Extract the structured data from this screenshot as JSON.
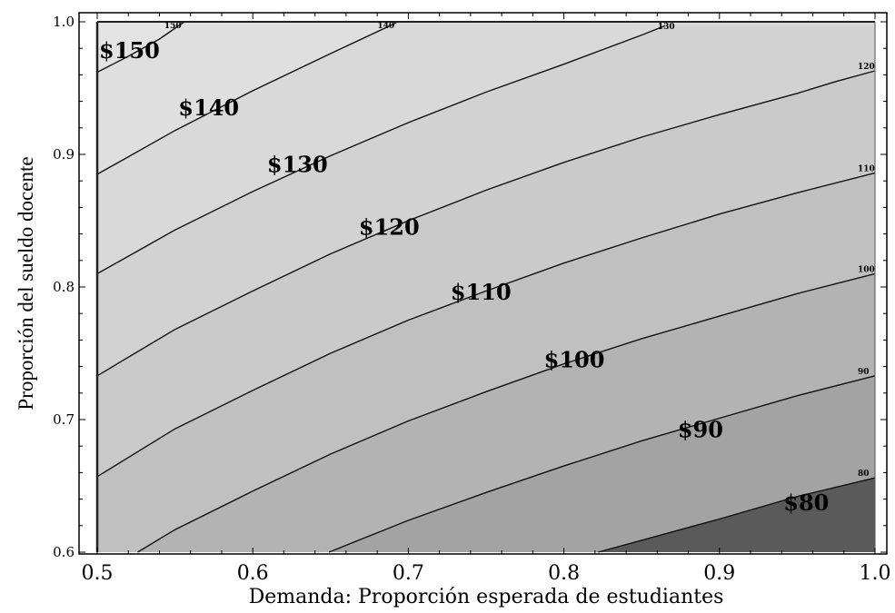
{
  "chart_data": {
    "type": "contour",
    "title": "",
    "xlabel": "Demanda: Proporción esperada de estudiantes",
    "ylabel": "Proporción del sueldo docente",
    "xlim": [
      0.5,
      1.0
    ],
    "ylim": [
      0.6,
      1.0
    ],
    "x_ticks": [
      "0.5",
      "0.6",
      "0.7",
      "0.8",
      "0.9",
      "1.0"
    ],
    "y_ticks": [
      "0.6",
      "0.7",
      "0.8",
      "0.9",
      "1.0"
    ],
    "grid": false,
    "levels": [
      {
        "value": 150,
        "label": "$150",
        "end_label": "150",
        "points": [
          [
            0.5,
            0.962
          ],
          [
            0.52,
            0.974
          ],
          [
            0.54,
            0.987
          ],
          [
            0.556,
            1.0
          ]
        ]
      },
      {
        "value": 140,
        "label": "$140",
        "end_label": "140",
        "points": [
          [
            0.5,
            0.885
          ],
          [
            0.55,
            0.918
          ],
          [
            0.6,
            0.948
          ],
          [
            0.65,
            0.976
          ],
          [
            0.69,
            0.998
          ],
          [
            0.693,
            1.0
          ]
        ]
      },
      {
        "value": 130,
        "label": "$130",
        "end_label": "130",
        "points": [
          [
            0.5,
            0.81
          ],
          [
            0.55,
            0.843
          ],
          [
            0.6,
            0.872
          ],
          [
            0.65,
            0.899
          ],
          [
            0.7,
            0.924
          ],
          [
            0.75,
            0.947
          ],
          [
            0.8,
            0.968
          ],
          [
            0.85,
            0.99
          ],
          [
            0.865,
            0.997
          ]
        ]
      },
      {
        "value": 120,
        "label": "$120",
        "end_label": "120",
        "points": [
          [
            0.5,
            0.733
          ],
          [
            0.55,
            0.768
          ],
          [
            0.6,
            0.797
          ],
          [
            0.65,
            0.825
          ],
          [
            0.7,
            0.85
          ],
          [
            0.75,
            0.873
          ],
          [
            0.8,
            0.894
          ],
          [
            0.85,
            0.913
          ],
          [
            0.9,
            0.93
          ],
          [
            0.95,
            0.946
          ],
          [
            0.975,
            0.955
          ],
          [
            1.0,
            0.963
          ]
        ]
      },
      {
        "value": 110,
        "label": "$110",
        "end_label": "110",
        "points": [
          [
            0.5,
            0.657
          ],
          [
            0.55,
            0.693
          ],
          [
            0.6,
            0.722
          ],
          [
            0.65,
            0.75
          ],
          [
            0.7,
            0.775
          ],
          [
            0.75,
            0.797
          ],
          [
            0.8,
            0.818
          ],
          [
            0.85,
            0.837
          ],
          [
            0.9,
            0.855
          ],
          [
            0.95,
            0.871
          ],
          [
            1.0,
            0.886
          ]
        ]
      },
      {
        "value": 100,
        "label": "$100",
        "end_label": "100",
        "points": [
          [
            0.526,
            0.6
          ],
          [
            0.55,
            0.617
          ],
          [
            0.6,
            0.646
          ],
          [
            0.65,
            0.674
          ],
          [
            0.7,
            0.699
          ],
          [
            0.75,
            0.721
          ],
          [
            0.8,
            0.742
          ],
          [
            0.85,
            0.761
          ],
          [
            0.9,
            0.778
          ],
          [
            0.95,
            0.795
          ],
          [
            1.0,
            0.81
          ]
        ]
      },
      {
        "value": 90,
        "label": "$90",
        "end_label": "90",
        "points": [
          [
            0.649,
            0.6
          ],
          [
            0.7,
            0.624
          ],
          [
            0.75,
            0.645
          ],
          [
            0.8,
            0.665
          ],
          [
            0.85,
            0.684
          ],
          [
            0.9,
            0.701
          ],
          [
            0.95,
            0.718
          ],
          [
            1.0,
            0.733
          ]
        ]
      },
      {
        "value": 80,
        "label": "$80",
        "end_label": "80",
        "points": [
          [
            0.822,
            0.6
          ],
          [
            0.85,
            0.609
          ],
          [
            0.9,
            0.625
          ],
          [
            0.95,
            0.642
          ],
          [
            1.0,
            0.656
          ]
        ]
      }
    ],
    "region_fills": [
      "#e3e3e3",
      "#dfdfdf",
      "#d9d9d9",
      "#d2d2d2",
      "#cacaca",
      "#c0c0c0",
      "#b3b3b3",
      "#a3a3a3",
      "#5a5a5a"
    ],
    "label_positions": [
      {
        "label": "$150",
        "x": 0.5,
        "y": 0.978
      },
      {
        "label": "$140",
        "x": 0.551,
        "y": 0.935
      },
      {
        "label": "$130",
        "x": 0.608,
        "y": 0.892
      },
      {
        "label": "$120",
        "x": 0.667,
        "y": 0.845
      },
      {
        "label": "$110",
        "x": 0.726,
        "y": 0.796
      },
      {
        "label": "$100",
        "x": 0.786,
        "y": 0.745
      },
      {
        "label": "$90",
        "x": 0.872,
        "y": 0.692
      },
      {
        "label": "$80",
        "x": 0.94,
        "y": 0.637
      }
    ]
  }
}
